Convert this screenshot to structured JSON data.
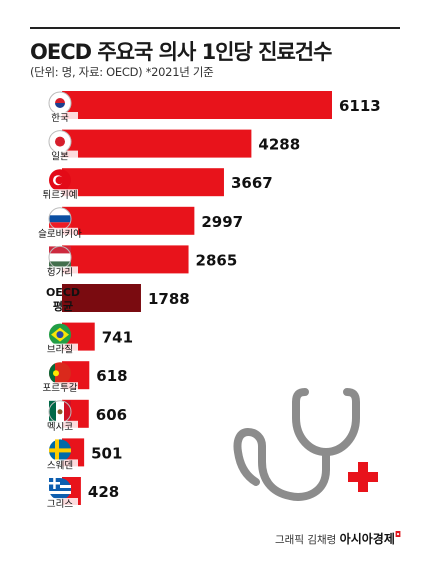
{
  "header": {
    "title": "OECD 주요국 의사 1인당 진료건수",
    "subtitle": "(단위: 명, 자료: OECD)  *2021년 기준"
  },
  "credit": {
    "label": "그래픽 김채령",
    "brand": "아시아경제"
  },
  "colors": {
    "bar": "#e8131b",
    "bar_average": "#7a0b10",
    "icon": "#8c8c8c"
  },
  "chart_data": {
    "type": "bar",
    "orientation": "horizontal",
    "title": "OECD 주요국 의사 1인당 진료건수",
    "categories": [
      "한국",
      "일본",
      "튀르키예",
      "슬로바키아",
      "헝가리",
      "OECD 평균",
      "브라질",
      "포르투갈",
      "멕시코",
      "스웨덴",
      "그리스"
    ],
    "values": [
      6113,
      4288,
      3667,
      2997,
      2865,
      1788,
      741,
      618,
      606,
      501,
      428
    ],
    "highlight": "OECD 평균",
    "xlim": [
      0,
      6113
    ],
    "grid": false,
    "legend": "none"
  }
}
